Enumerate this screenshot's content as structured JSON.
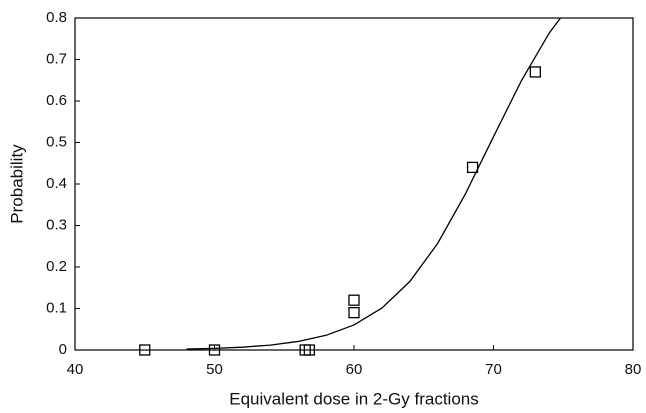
{
  "chart_data": {
    "type": "scatter",
    "x_label": "Equivalent dose in 2-Gy fractions",
    "y_label": "Probability",
    "xlim": [
      40,
      80
    ],
    "xticks": [
      40,
      50,
      60,
      70,
      80
    ],
    "ylim": [
      0,
      0.8
    ],
    "yticks": [
      0,
      0.1,
      0.2,
      0.3,
      0.4,
      0.5,
      0.6,
      0.7,
      0.8
    ],
    "grid": false,
    "series": [
      {
        "style": "markers",
        "marker": "square",
        "color": "#000000",
        "x": [
          45,
          50,
          56.5,
          56.8,
          60,
          60,
          68.5,
          73
        ],
        "values": [
          0,
          0,
          0,
          0,
          0.12,
          0.09,
          0.44,
          0.67
        ]
      },
      {
        "style": "line",
        "color": "#000000",
        "x": [
          48,
          50,
          52,
          54,
          56,
          58,
          60,
          62,
          64,
          66,
          68,
          70,
          72,
          74,
          74.8
        ],
        "values": [
          0.0022,
          0.0039,
          0.0068,
          0.0118,
          0.0206,
          0.0354,
          0.0604,
          0.101,
          0.165,
          0.257,
          0.377,
          0.514,
          0.649,
          0.764,
          0.8
        ]
      }
    ]
  }
}
